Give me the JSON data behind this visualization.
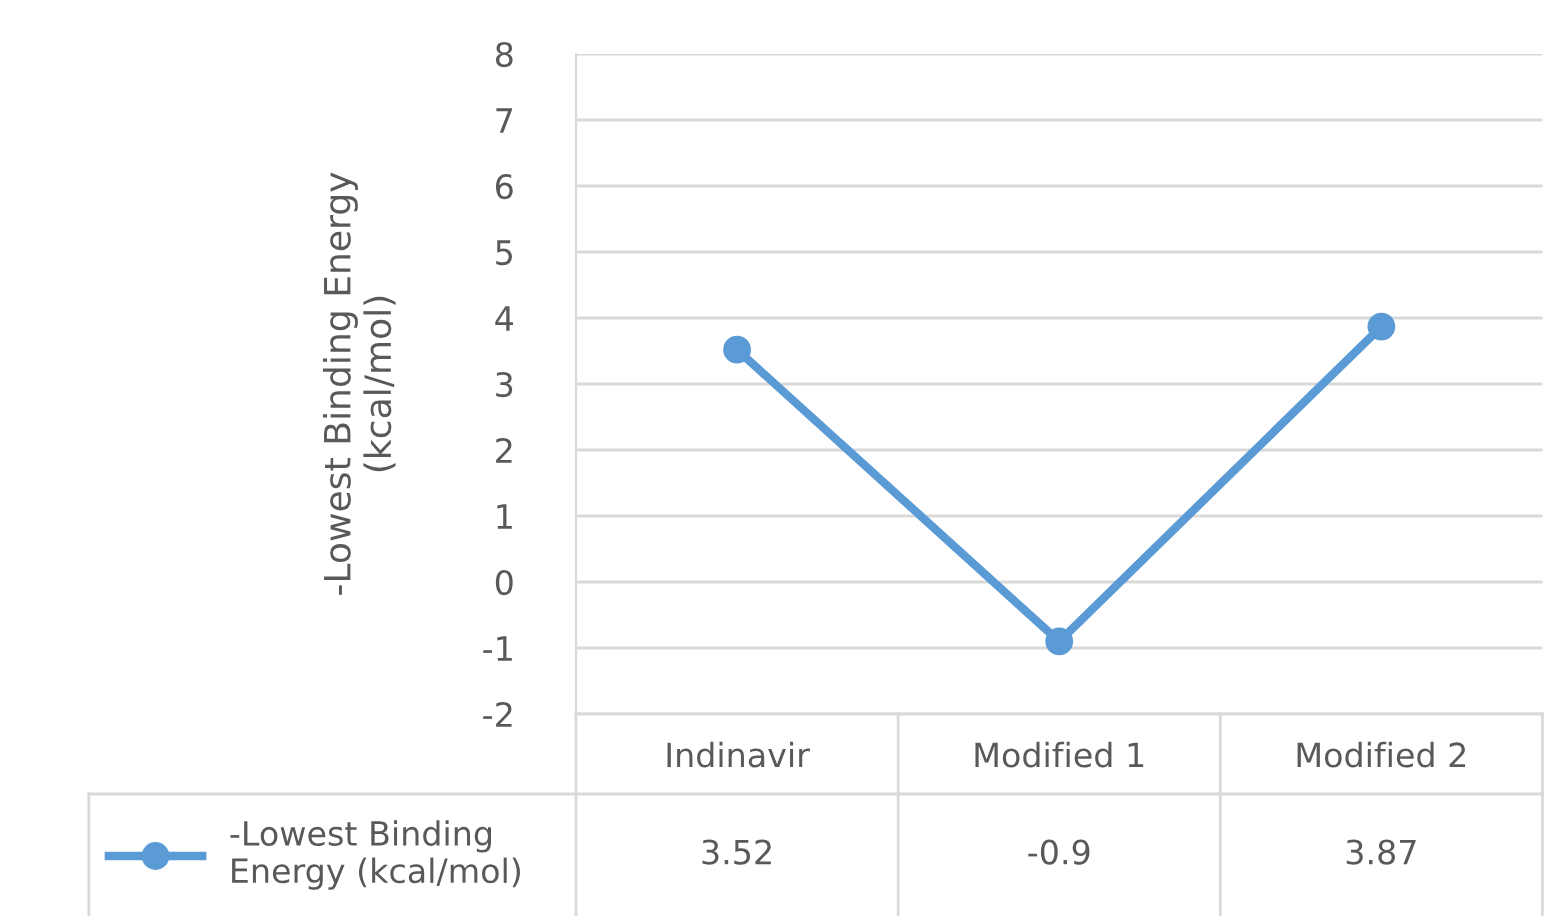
{
  "chart_data": {
    "type": "line",
    "ylabel": "-Lowest Binding Energy (kcal/mol)",
    "categories": [
      "Indinavir",
      "Modified 1",
      "Modified 2"
    ],
    "series": [
      {
        "name": "-Lowest Binding Energy (kcal/mol)",
        "color": "#5b9bd5",
        "values": [
          3.52,
          -0.9,
          3.87
        ]
      }
    ],
    "ylim": [
      -2,
      8
    ],
    "yticks": [
      -2,
      -1,
      0,
      1,
      2,
      3,
      4,
      5,
      6,
      7,
      8
    ],
    "grid": "y",
    "marker": "circle",
    "data_labels": true,
    "legend": "bottom"
  }
}
